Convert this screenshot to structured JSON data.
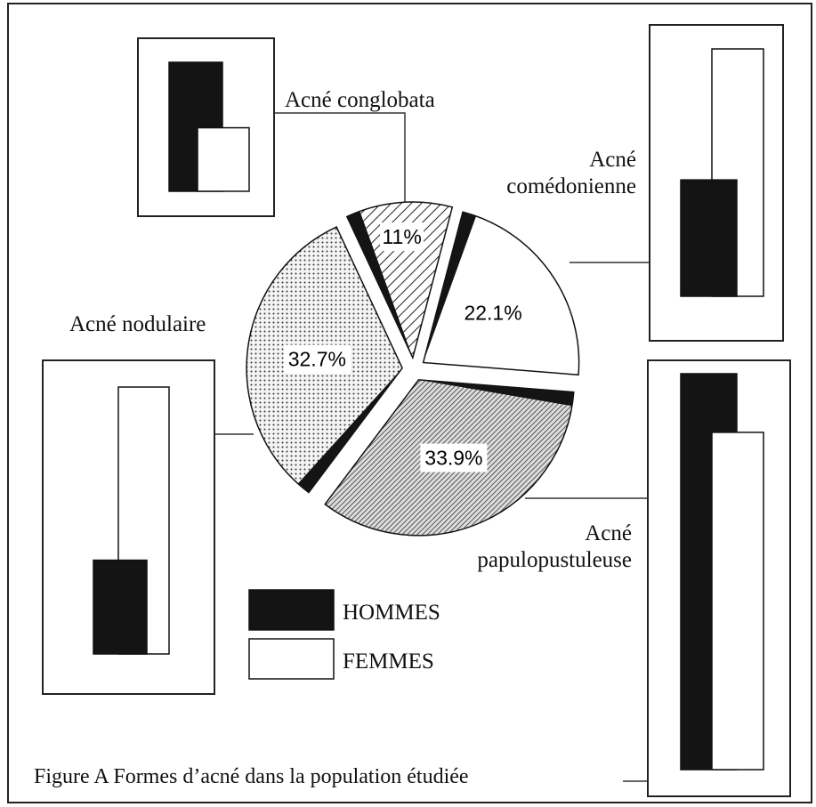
{
  "chart_data": {
    "type": "pie",
    "caption": "Figure A Formes d’acné dans la population étudiée",
    "categories": [
      "Acné conglobata",
      "Acné\ncomédonienne",
      "Acné\npapulopustuleuse",
      "Acné nodulaire"
    ],
    "values": [
      11,
      22.1,
      33.9,
      32.7
    ],
    "value_labels": [
      "11%",
      "22.1%",
      "33.9%",
      "32.7%"
    ],
    "fills": [
      "hatch-wide",
      "plain",
      "hatch-dense",
      "dots"
    ],
    "series": [
      {
        "name": "HOMMES",
        "color": "#141414",
        "values": [
          67,
          32,
          54,
          26
        ]
      },
      {
        "name": "FEMMES",
        "color": "#ffffff",
        "values": [
          33,
          68,
          46,
          74
        ]
      }
    ]
  }
}
